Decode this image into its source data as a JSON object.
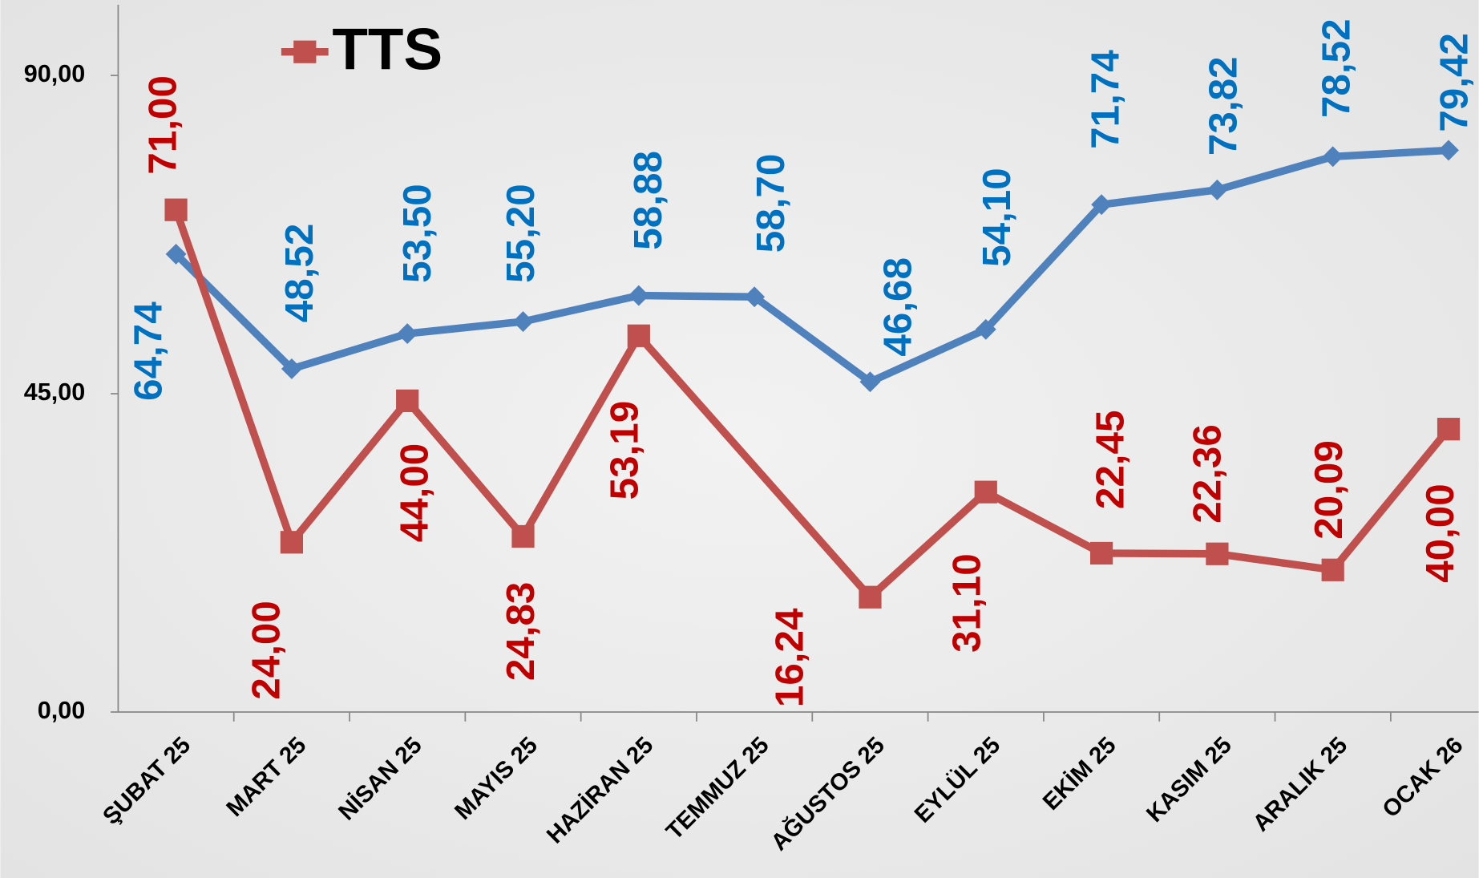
{
  "chart_data": {
    "type": "line",
    "categories": [
      "ŞUBAT 25",
      "MART 25",
      "NİSAN 25",
      "MAYIS 25",
      "HAZİRAN 25",
      "TEMMUZ 25",
      "AĞUSTOS 25",
      "EYLÜL 25",
      "EKİM 25",
      "KASIM 25",
      "ARALIK 25",
      "OCAK 26"
    ],
    "series": [
      {
        "color": "#4f81bd",
        "label_color": "#0070c0",
        "marker": "diamond",
        "values": [
          64.74,
          48.52,
          53.5,
          55.2,
          58.88,
          58.7,
          46.68,
          54.1,
          71.74,
          73.82,
          78.52,
          79.42
        ],
        "value_labels": [
          "64,74",
          "48,52",
          "53,50",
          "55,20",
          "58,88",
          "58,70",
          "46,68",
          "54,10",
          "71,74",
          "73,82",
          "78,52",
          "79,42"
        ]
      },
      {
        "name": "TTS",
        "color": "#c0504d",
        "label_color": "#c00000",
        "marker": "square",
        "values": [
          71.0,
          24.0,
          44.0,
          24.83,
          53.19,
          null,
          16.24,
          31.1,
          22.45,
          22.36,
          20.09,
          40.0
        ],
        "value_labels": [
          "71,00",
          "24,00",
          "44,00",
          "24,83",
          "53,19",
          null,
          "16,24",
          "31,10",
          "22,45",
          "22,36",
          "20,09",
          "40,00"
        ]
      }
    ],
    "connect_gaps": true,
    "ylim": [
      0,
      100
    ],
    "yticks": [
      {
        "value": 0,
        "label": "0,00"
      },
      {
        "value": 45,
        "label": "45,00"
      },
      {
        "value": 90,
        "label": "90,00"
      }
    ],
    "grid": false,
    "legend": "top-left"
  }
}
